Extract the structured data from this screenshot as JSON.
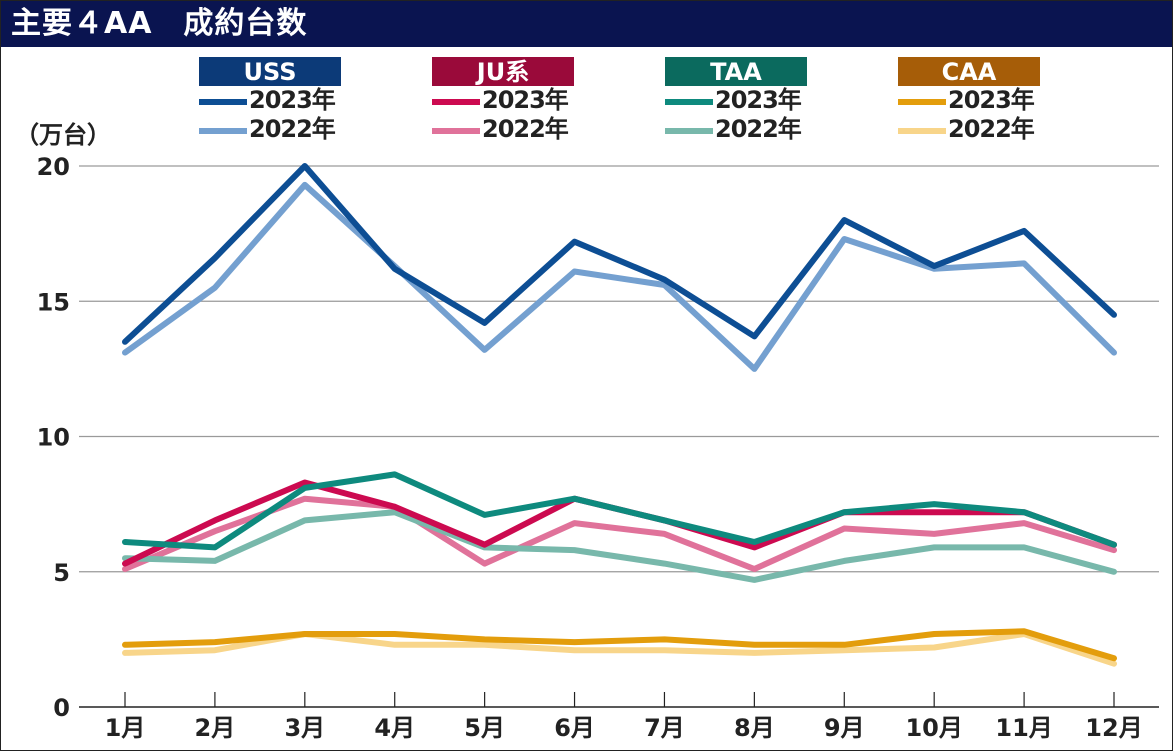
{
  "title": "主要４AA　成約台数",
  "chart_data": {
    "type": "line",
    "title": "主要４AA　成約台数",
    "ylabel": "（万台）",
    "xlabel": "",
    "ylim": [
      0,
      20
    ],
    "yticks": [
      "0",
      "5",
      "10",
      "15",
      "20"
    ],
    "ytick_values": [
      0,
      5,
      10,
      15,
      20
    ],
    "categories": [
      "1月",
      "2月",
      "3月",
      "4月",
      "5月",
      "6月",
      "7月",
      "8月",
      "9月",
      "10月",
      "11月",
      "12月"
    ],
    "grid": true,
    "legend_position": "top",
    "groups": [
      {
        "name": "USS",
        "color": "#0c3a78"
      },
      {
        "name": "JU系",
        "color": "#9a0a3a"
      },
      {
        "name": "TAA",
        "color": "#0b6a5e"
      },
      {
        "name": "CAA",
        "color": "#a65d08"
      }
    ],
    "series": [
      {
        "group": "USS",
        "name": "2023年",
        "color": "#0d4e94",
        "values": [
          13.5,
          16.6,
          20.0,
          16.2,
          14.2,
          17.2,
          15.8,
          13.7,
          18.0,
          16.3,
          17.6,
          14.5
        ]
      },
      {
        "group": "USS",
        "name": "2022年",
        "color": "#74a0d0",
        "values": [
          13.1,
          15.5,
          19.3,
          16.3,
          13.2,
          16.1,
          15.6,
          12.5,
          17.3,
          16.2,
          16.4,
          13.1
        ]
      },
      {
        "group": "JU系",
        "name": "2023年",
        "color": "#cc0a50",
        "values": [
          5.3,
          6.9,
          8.3,
          7.4,
          6.0,
          7.7,
          6.9,
          5.9,
          7.2,
          7.2,
          7.2,
          6.0
        ]
      },
      {
        "group": "JU系",
        "name": "2022年",
        "color": "#e0729a",
        "values": [
          5.1,
          6.5,
          7.7,
          7.4,
          5.3,
          6.8,
          6.4,
          5.1,
          6.6,
          6.4,
          6.8,
          5.8
        ]
      },
      {
        "group": "TAA",
        "name": "2023年",
        "color": "#0e8a7e",
        "values": [
          6.1,
          5.9,
          8.1,
          8.6,
          7.1,
          7.7,
          6.9,
          6.1,
          7.2,
          7.5,
          7.2,
          6.0
        ]
      },
      {
        "group": "TAA",
        "name": "2022年",
        "color": "#78b8ab",
        "values": [
          5.5,
          5.4,
          6.9,
          7.2,
          5.9,
          5.8,
          5.3,
          4.7,
          5.4,
          5.9,
          5.9,
          5.0
        ]
      },
      {
        "group": "CAA",
        "name": "2023年",
        "color": "#e39d0c",
        "values": [
          2.3,
          2.4,
          2.7,
          2.7,
          2.5,
          2.4,
          2.5,
          2.3,
          2.3,
          2.7,
          2.8,
          1.8
        ]
      },
      {
        "group": "CAA",
        "name": "2022年",
        "color": "#f8d58a",
        "values": [
          2.0,
          2.1,
          2.7,
          2.3,
          2.3,
          2.1,
          2.1,
          2.0,
          2.1,
          2.2,
          2.7,
          1.6
        ]
      }
    ]
  }
}
